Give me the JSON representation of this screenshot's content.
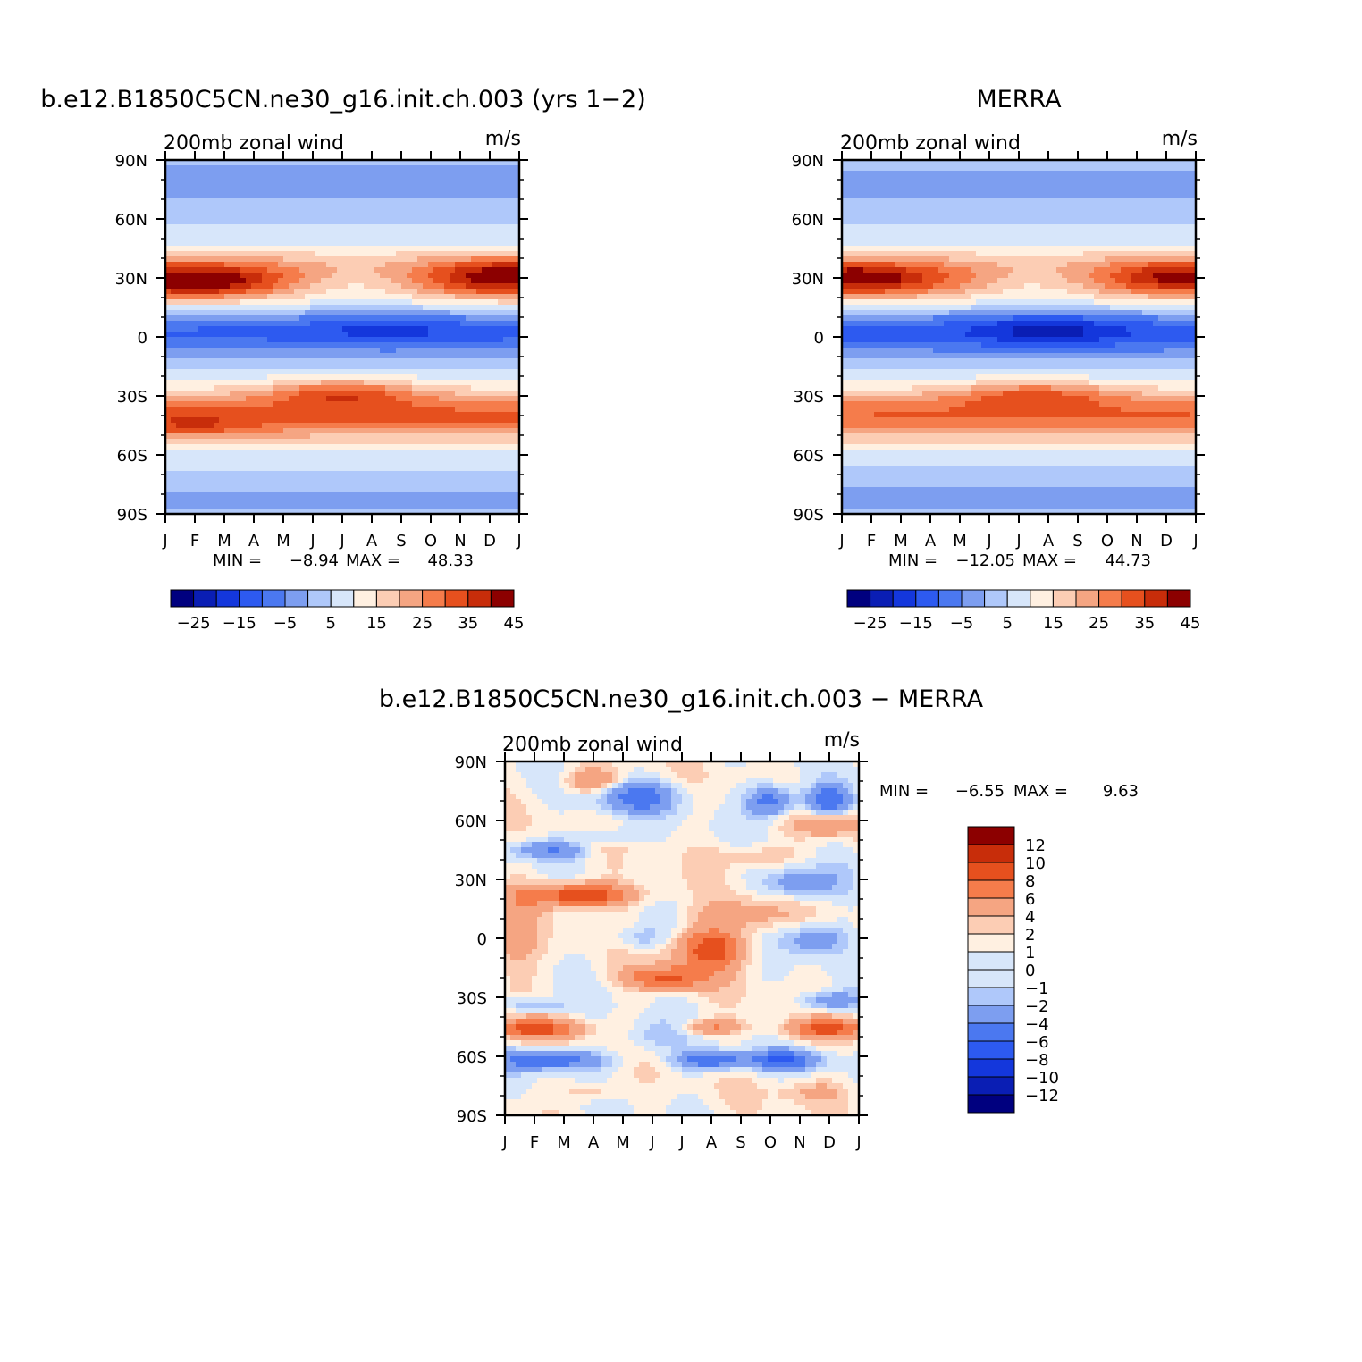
{
  "chart_data": [
    {
      "type": "heatmap",
      "panel_title": "b.e12.B1850C5CN.ne30_g16.init.ch.003 (yrs 1−2)",
      "title": "200mb zonal wind",
      "units": "m/s",
      "x_tick_labels": [
        "J",
        "F",
        "M",
        "A",
        "M",
        "J",
        "J",
        "A",
        "S",
        "O",
        "N",
        "D",
        "J"
      ],
      "y_tick_labels": [
        "90N",
        "60N",
        "30N",
        "0",
        "30S",
        "60S",
        "90S"
      ],
      "ylim": [
        -90,
        90
      ],
      "stats_min_label": "MIN =",
      "stats_min": "−8.94",
      "stats_max_label": "MAX =",
      "stats_max": "48.33",
      "contour_levels": [
        -25,
        -20,
        -15,
        -10,
        -5,
        0,
        5,
        10,
        15,
        20,
        25,
        30,
        35,
        40,
        45
      ],
      "colorbar_labels": [
        "−25",
        "−15",
        "−5",
        "5",
        "15",
        "25",
        "35",
        "45"
      ],
      "features": [
        {
          "lat": 28,
          "month": 1.0,
          "value": 48
        },
        {
          "lat": 31,
          "month": 11.5,
          "value": 42
        },
        {
          "lat": -28,
          "month": 6.0,
          "value": 46
        },
        {
          "lat": -45,
          "month": 1.0,
          "value": 36
        },
        {
          "lat": 5,
          "month": 7.5,
          "value": -8
        },
        {
          "lat": -5,
          "month": 1.5,
          "value": -5
        }
      ]
    },
    {
      "type": "heatmap",
      "panel_title": "MERRA",
      "title": "200mb zonal wind",
      "units": "m/s",
      "x_tick_labels": [
        "J",
        "F",
        "M",
        "A",
        "M",
        "J",
        "J",
        "A",
        "S",
        "O",
        "N",
        "D",
        "J"
      ],
      "y_tick_labels": [
        "90N",
        "60N",
        "30N",
        "0",
        "30S",
        "60S",
        "90S"
      ],
      "ylim": [
        -90,
        90
      ],
      "stats_min_label": "MIN =",
      "stats_min": "−12.05",
      "stats_max_label": "MAX =",
      "stats_max": "44.73",
      "contour_levels": [
        -25,
        -20,
        -15,
        -10,
        -5,
        0,
        5,
        10,
        15,
        20,
        25,
        30,
        35,
        40,
        45
      ],
      "colorbar_labels": [
        "−25",
        "−15",
        "−5",
        "5",
        "15",
        "25",
        "35",
        "45"
      ],
      "features": [
        {
          "lat": 30,
          "month": 0.5,
          "value": 44
        },
        {
          "lat": 31,
          "month": 11.5,
          "value": 40
        },
        {
          "lat": -29,
          "month": 6.5,
          "value": 42
        },
        {
          "lat": 4,
          "month": 7.0,
          "value": -12
        }
      ]
    },
    {
      "type": "heatmap",
      "panel_title": "b.e12.B1850C5CN.ne30_g16.init.ch.003 − MERRA",
      "title": "200mb zonal wind",
      "units": "m/s",
      "x_tick_labels": [
        "J",
        "F",
        "M",
        "A",
        "M",
        "J",
        "J",
        "A",
        "S",
        "O",
        "N",
        "D",
        "J"
      ],
      "y_tick_labels": [
        "90N",
        "60N",
        "30N",
        "0",
        "30S",
        "60S",
        "90S"
      ],
      "ylim": [
        -90,
        90
      ],
      "stats_min_label": "MIN =",
      "stats_min": "−6.55",
      "stats_max_label": "MAX =",
      "stats_max": "9.63",
      "contour_levels": [
        -12,
        -10,
        -8,
        -6,
        -4,
        -2,
        -1,
        0,
        1,
        2,
        4,
        6,
        8,
        10,
        12
      ],
      "colorbar_labels": [
        "12",
        "10",
        "8",
        "6",
        "4",
        "2",
        "1",
        "0",
        "−1",
        "−2",
        "−4",
        "−6",
        "−8",
        "−10",
        "−12"
      ],
      "features": [
        {
          "lat": 22,
          "month": 2.5,
          "value": 8
        },
        {
          "lat": -5,
          "month": 7.0,
          "value": 7
        },
        {
          "lat": -20,
          "month": 5.5,
          "value": 7
        },
        {
          "lat": -46,
          "month": 1.0,
          "value": 6
        },
        {
          "lat": -46,
          "month": 11.0,
          "value": 6
        },
        {
          "lat": -62,
          "month": 1.5,
          "value": -6
        },
        {
          "lat": -62,
          "month": 7.0,
          "value": -6
        },
        {
          "lat": -62,
          "month": 9.5,
          "value": -6
        },
        {
          "lat": 72,
          "month": 4.5,
          "value": -5
        },
        {
          "lat": 70,
          "month": 9.0,
          "value": -6
        },
        {
          "lat": 70,
          "month": 11.0,
          "value": -6
        },
        {
          "lat": 45,
          "month": 1.5,
          "value": -4
        }
      ]
    }
  ],
  "palette": {
    "colors": [
      "#00007f",
      "#0a1eb4",
      "#1437dc",
      "#2d5af0",
      "#4b78f0",
      "#7d9ef0",
      "#afc8fa",
      "#d7e6fa",
      "#fff0e1",
      "#fccdb4",
      "#f5a582",
      "#f57c4b",
      "#e6501e",
      "#c82d0a",
      "#8c0000"
    ]
  }
}
